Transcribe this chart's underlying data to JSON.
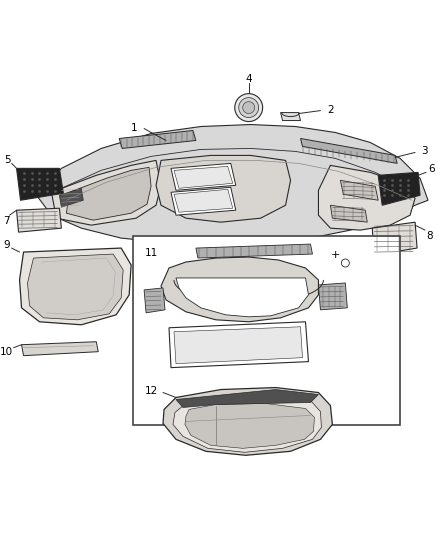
{
  "bg_color": "#ffffff",
  "line_color": "#2a2a2a",
  "label_color": "#000000",
  "fig_width": 4.38,
  "fig_height": 5.33,
  "sketch_lw": 0.7,
  "heavy_lw": 1.0,
  "light_gray": "#d8d8d8",
  "mid_gray": "#b0b0b0",
  "dark_gray": "#505050",
  "dark_fill": "#222222"
}
